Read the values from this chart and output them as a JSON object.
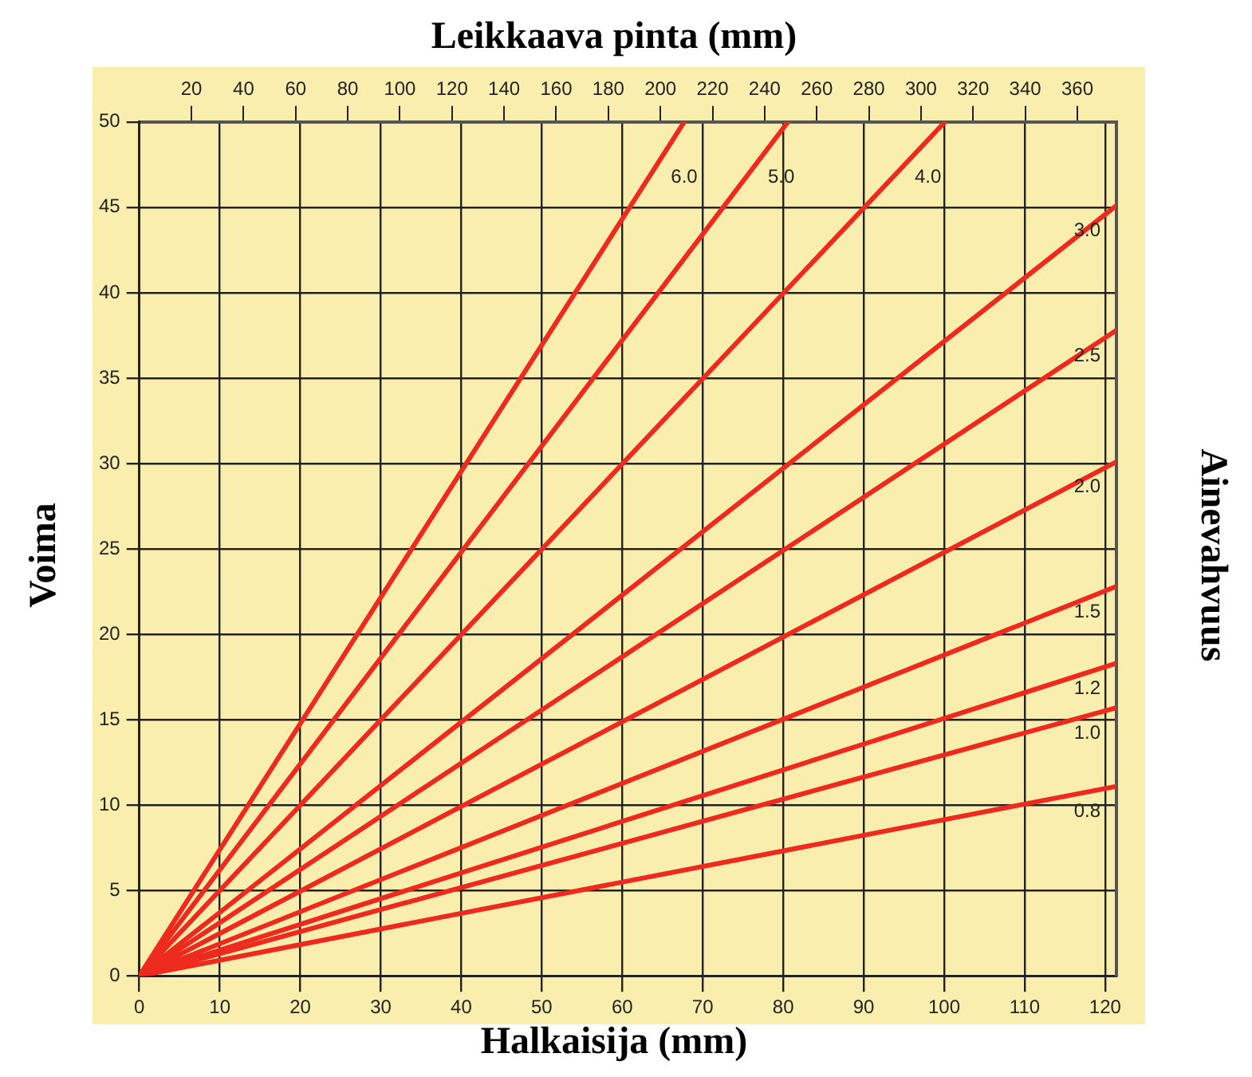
{
  "chart_data": {
    "type": "line",
    "x2label": "Leikkaava pinta (mm)",
    "xlabel": "Halkaisija (mm)",
    "ylabel": "Voima",
    "y2label": "Ainevahvuus",
    "xlim": [
      0,
      121.4
    ],
    "xticks": [
      0,
      10,
      20,
      30,
      40,
      50,
      60,
      70,
      80,
      90,
      100,
      110,
      120
    ],
    "x2lim": [
      0,
      375
    ],
    "x2ticks": [
      20,
      40,
      60,
      80,
      100,
      120,
      140,
      160,
      180,
      200,
      220,
      240,
      260,
      280,
      300,
      320,
      340,
      360
    ],
    "ylim": [
      0,
      50
    ],
    "yticks": [
      0,
      5,
      10,
      15,
      20,
      25,
      30,
      35,
      40,
      45,
      50
    ],
    "grid": true,
    "legend": false,
    "marker": "none",
    "line_style": "solid",
    "series": [
      {
        "name": "6.0",
        "color": "#ee2a1e",
        "x": [
          0,
          67.7
        ],
        "values": [
          0,
          50
        ]
      },
      {
        "name": "5.0",
        "color": "#ee2a1e",
        "x": [
          0,
          80.6
        ],
        "values": [
          0,
          50
        ]
      },
      {
        "name": "4.0",
        "color": "#ee2a1e",
        "x": [
          0,
          100.1
        ],
        "values": [
          0,
          50
        ]
      },
      {
        "name": "3.0",
        "color": "#ee2a1e",
        "x": [
          0,
          121.4
        ],
        "values": [
          0,
          45.1
        ]
      },
      {
        "name": "2.5",
        "color": "#ee2a1e",
        "x": [
          0,
          121.4
        ],
        "values": [
          0,
          37.8
        ]
      },
      {
        "name": "2.0",
        "color": "#ee2a1e",
        "x": [
          0,
          121.4
        ],
        "values": [
          0,
          30.1
        ]
      },
      {
        "name": "1.5",
        "color": "#ee2a1e",
        "x": [
          0,
          121.4
        ],
        "values": [
          0,
          22.8
        ]
      },
      {
        "name": "1.2",
        "color": "#ee2a1e",
        "x": [
          0,
          121.4
        ],
        "values": [
          0,
          18.3
        ]
      },
      {
        "name": "1.0",
        "color": "#ee2a1e",
        "x": [
          0,
          121.4
        ],
        "values": [
          0,
          15.7
        ]
      },
      {
        "name": "0.8",
        "color": "#ee2a1e",
        "x": [
          0,
          121.4
        ],
        "values": [
          0,
          11.1
        ]
      }
    ]
  }
}
